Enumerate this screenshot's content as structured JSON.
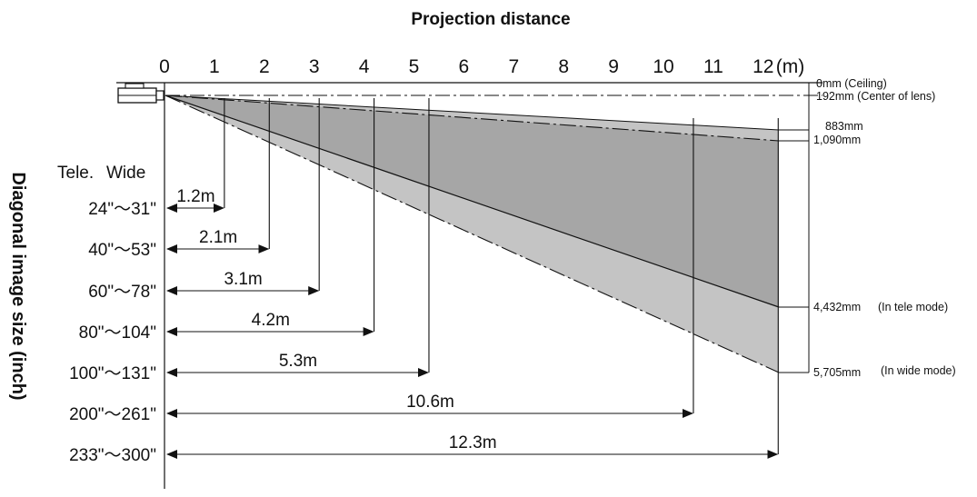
{
  "title": "Projection distance",
  "y_axis_label": "Diagonal image size (inch)",
  "x_axis": {
    "ticks": [
      "0",
      "1",
      "2",
      "3",
      "4",
      "5",
      "6",
      "7",
      "8",
      "9",
      "10",
      "11",
      "12"
    ],
    "unit": "(m)"
  },
  "zoom_headers": {
    "tele": "Tele.",
    "wide": "Wide"
  },
  "rows": [
    {
      "distance_m": 1.2,
      "distance_label": "1.2m",
      "size_label": "24\"～31\""
    },
    {
      "distance_m": 2.1,
      "distance_label": "2.1m",
      "size_label": "40\"～53\""
    },
    {
      "distance_m": 3.1,
      "distance_label": "3.1m",
      "size_label": "60\"～78\""
    },
    {
      "distance_m": 4.2,
      "distance_label": "4.2m",
      "size_label": "80\"～104\""
    },
    {
      "distance_m": 5.3,
      "distance_label": "5.3m",
      "size_label": "100\"～131\""
    },
    {
      "distance_m": 10.6,
      "distance_label": "10.6m",
      "size_label": "200\"～261\""
    },
    {
      "distance_m": 12.3,
      "distance_label": "12.3m",
      "size_label": "233\"～300\""
    }
  ],
  "right_annotations": [
    {
      "key": "ceiling",
      "text": "0mm (Ceiling)"
    },
    {
      "key": "lens",
      "text": "192mm (Center of lens)"
    },
    {
      "key": "tele_top",
      "text": "883mm"
    },
    {
      "key": "wide_top",
      "text": "1,090mm"
    },
    {
      "key": "tele_bottom",
      "text": "4,432mm",
      "note": "(In tele mode)"
    },
    {
      "key": "wide_bottom",
      "text": "5,705mm",
      "note": "(In wide mode)"
    }
  ],
  "colors": {
    "wide_beam": "#c4c4c4",
    "tele_beam": "#a6a6a6",
    "line": "#111111"
  }
}
